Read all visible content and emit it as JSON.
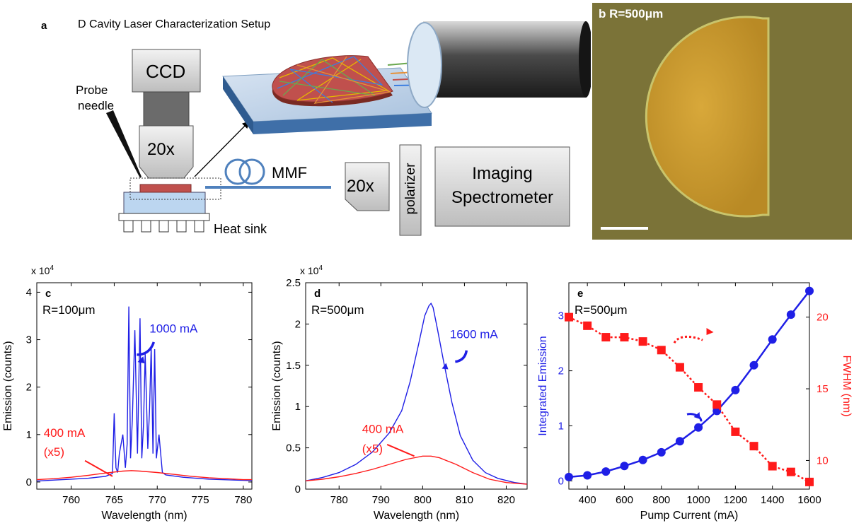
{
  "panel_a": {
    "letter": "a",
    "title": "D Cavity Laser Characterization Setup",
    "ccd": "CCD",
    "probe_line1": "Probe",
    "probe_line2": "needle",
    "objective1": "20x",
    "mmf": "MMF",
    "objective2": "20x",
    "polarizer": "polarizer",
    "spectrometer_line1": "Imaging",
    "spectrometer_line2": "Spectrometer",
    "heatsink": "Heat sink"
  },
  "panel_b": {
    "letter": "b",
    "label": "R=500μm"
  },
  "colors": {
    "blue": "#1f1fe6",
    "red": "#ff1a1a"
  },
  "chart_data": [
    {
      "id": "c",
      "type": "line",
      "letter": "c",
      "annotation": "R=100μm",
      "scale_label": "x 10",
      "scale_exp": "4",
      "xlabel": "Wavelength  (nm)",
      "ylabel": "Emission (counts)",
      "xlim": [
        756,
        781
      ],
      "ylim": [
        -0.15,
        4.2
      ],
      "xticks": [
        760,
        765,
        770,
        775,
        780
      ],
      "yticks": [
        0,
        1,
        2,
        3,
        4
      ],
      "series": [
        {
          "name": "1000 mA",
          "color": "#1f1fe6",
          "x": [
            756,
            758,
            760,
            762,
            763,
            764,
            764.8,
            765.0,
            765.2,
            765.4,
            765.6,
            766.0,
            766.3,
            766.5,
            766.7,
            766.9,
            767.1,
            767.4,
            767.7,
            768.0,
            768.2,
            768.4,
            768.6,
            768.9,
            769.1,
            769.3,
            769.5,
            769.7,
            769.9,
            770.2,
            770.6,
            771,
            773,
            776,
            779,
            781
          ],
          "y": [
            0.02,
            0.04,
            0.06,
            0.08,
            0.1,
            0.12,
            0.18,
            1.45,
            0.3,
            0.2,
            0.6,
            1.0,
            0.3,
            0.8,
            3.7,
            0.5,
            1.3,
            3.2,
            0.6,
            3.45,
            0.5,
            1.2,
            2.7,
            0.7,
            1.5,
            2.85,
            0.6,
            2.8,
            0.5,
            1.0,
            0.2,
            0.15,
            0.1,
            0.06,
            0.04,
            0.03
          ]
        },
        {
          "name": "400 mA",
          "color": "#ff1a1a",
          "x": [
            756,
            758,
            760,
            762,
            764,
            766,
            767,
            768,
            770,
            772,
            774,
            776,
            778,
            780,
            781
          ],
          "y": [
            0.05,
            0.07,
            0.1,
            0.14,
            0.19,
            0.23,
            0.24,
            0.23,
            0.2,
            0.16,
            0.12,
            0.09,
            0.07,
            0.05,
            0.05
          ]
        }
      ],
      "labels": {
        "s1": "1000 mA",
        "s2_line1": "400 mA",
        "s2_line2": "(x5)"
      }
    },
    {
      "id": "d",
      "type": "line",
      "letter": "d",
      "annotation": "R=500μm",
      "scale_label": "x 10",
      "scale_exp": "4",
      "xlabel": "Wavelength  (nm)",
      "ylabel": "Emission (counts)",
      "xlim": [
        772,
        825
      ],
      "ylim": [
        0,
        2.5
      ],
      "xticks": [
        780,
        790,
        800,
        810,
        820
      ],
      "yticks": [
        0,
        0.5,
        1,
        1.5,
        2,
        2.5
      ],
      "series": [
        {
          "name": "1600 mA",
          "color": "#1f1fe6",
          "x": [
            772,
            776,
            780,
            784,
            788,
            792,
            795,
            797,
            799,
            800.5,
            801.5,
            802,
            802.5,
            803.5,
            805,
            807,
            809,
            812,
            815,
            818,
            822,
            825
          ],
          "y": [
            0.1,
            0.14,
            0.2,
            0.3,
            0.45,
            0.68,
            0.95,
            1.3,
            1.75,
            2.1,
            2.22,
            2.25,
            2.2,
            1.95,
            1.55,
            1.05,
            0.65,
            0.35,
            0.2,
            0.13,
            0.08,
            0.06
          ]
        },
        {
          "name": "400 mA",
          "color": "#ff1a1a",
          "x": [
            772,
            776,
            780,
            784,
            788,
            792,
            796,
            800,
            802,
            804,
            808,
            812,
            816,
            820,
            825
          ],
          "y": [
            0.1,
            0.12,
            0.15,
            0.19,
            0.24,
            0.3,
            0.36,
            0.4,
            0.4,
            0.38,
            0.3,
            0.2,
            0.12,
            0.08,
            0.06
          ]
        }
      ],
      "labels": {
        "s1": "1600 mA",
        "s2_line1": "400 mA",
        "s2_line2": "(x5)"
      }
    },
    {
      "id": "e",
      "type": "line",
      "letter": "e",
      "annotation": "R=500μm",
      "xlabel": "Pump Current  (mA)",
      "ylabel": "Integrated Emission",
      "y2label": "FWHM  (nm)",
      "xlim": [
        300,
        1600
      ],
      "ylim": [
        -0.15,
        3.6
      ],
      "y2lim": [
        8,
        22.4
      ],
      "xticks": [
        400,
        600,
        800,
        1000,
        1200,
        1400,
        1600
      ],
      "yticks": [
        0,
        1,
        2,
        3
      ],
      "y2ticks": [
        10,
        15,
        20
      ],
      "series": [
        {
          "name": "Integrated Emission",
          "color": "#1f1fe6",
          "axis": "left",
          "x": [
            300,
            400,
            500,
            600,
            700,
            800,
            900,
            1000,
            1100,
            1200,
            1300,
            1400,
            1500,
            1600
          ],
          "y": [
            0.07,
            0.1,
            0.17,
            0.27,
            0.38,
            0.52,
            0.72,
            0.97,
            1.27,
            1.65,
            2.1,
            2.57,
            3.02,
            3.45
          ]
        },
        {
          "name": "FWHM",
          "color": "#ff1a1a",
          "axis": "right",
          "x": [
            300,
            400,
            500,
            600,
            700,
            800,
            900,
            1000,
            1100,
            1200,
            1300,
            1400,
            1500,
            1600
          ],
          "y": [
            20.0,
            19.4,
            18.6,
            18.6,
            18.3,
            17.7,
            16.5,
            15.1,
            13.9,
            12.0,
            11.0,
            9.6,
            9.2,
            8.5
          ]
        }
      ]
    }
  ]
}
